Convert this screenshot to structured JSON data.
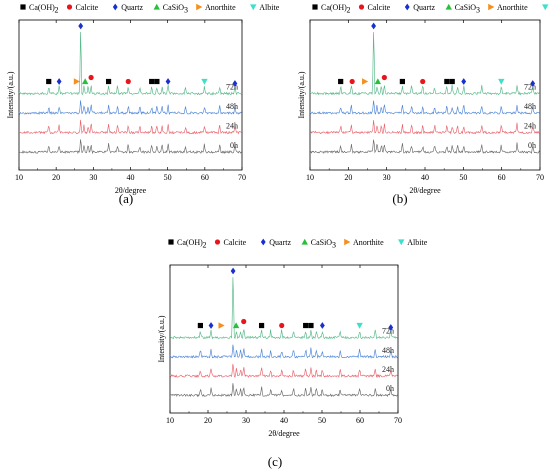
{
  "legend": {
    "caoh2": {
      "label": "Ca(OH)",
      "sub": "2"
    },
    "calcite": {
      "label": "Calcite"
    },
    "quartz": {
      "label": "Quartz"
    },
    "casio3": {
      "label": "CaSiO",
      "sub": "3"
    },
    "anorthite": {
      "label": "Anorthite"
    },
    "albite": {
      "label": "Albite"
    }
  },
  "colors": {
    "caoh2": "#000000",
    "calcite": "#e8161c",
    "quartz": "#1a2fd0",
    "casio3": "#28c03a",
    "anorthite": "#f5901e",
    "albite": "#3ee0cc",
    "series_0h": "#6b6b6b",
    "series_24h": "#e8646e",
    "series_48h": "#4f86d8",
    "series_72h": "#58b98a"
  },
  "chart_data": [
    {
      "type": "line",
      "panel": "(a)",
      "xlabel": "2θ/degree",
      "ylabel": "Intensity/(a.u.)",
      "xlim": [
        10,
        70
      ],
      "xticks": [
        10,
        20,
        30,
        40,
        50,
        60,
        70
      ],
      "series": [
        {
          "name": "0h",
          "key": "0h"
        },
        {
          "name": "24h",
          "key": "24h"
        },
        {
          "name": "48h",
          "key": "48h"
        },
        {
          "name": "72h",
          "key": "72h"
        }
      ],
      "peaks": [
        18.0,
        20.8,
        26.6,
        27.5,
        28.6,
        29.4,
        34.1,
        36.5,
        39.4,
        42.5,
        45.7,
        47.1,
        48.5,
        50.1,
        54.8,
        59.9,
        64.0,
        68.1
      ],
      "markers": [
        {
          "phase": "caoh2",
          "x": 18.0
        },
        {
          "phase": "quartz",
          "x": 20.8
        },
        {
          "phase": "anorthite",
          "x": 25.5
        },
        {
          "phase": "quartz",
          "x": 26.6
        },
        {
          "phase": "casio3",
          "x": 27.8
        },
        {
          "phase": "calcite",
          "x": 29.4
        },
        {
          "phase": "caoh2",
          "x": 34.1
        },
        {
          "phase": "calcite",
          "x": 39.4
        },
        {
          "phase": "caoh2",
          "x": 45.7
        },
        {
          "phase": "caoh2",
          "x": 47.1
        },
        {
          "phase": "quartz",
          "x": 50.1
        },
        {
          "phase": "albite",
          "x": 59.9
        },
        {
          "phase": "quartz",
          "x": 68.1
        }
      ]
    },
    {
      "type": "line",
      "panel": "(b)",
      "xlabel": "2θ/degree",
      "ylabel": "Intensity/(a.u.)",
      "xlim": [
        10,
        70
      ],
      "xticks": [
        10,
        20,
        30,
        40,
        50,
        60,
        70
      ],
      "series": [
        {
          "name": "0h",
          "key": "0h"
        },
        {
          "name": "24h",
          "key": "24h"
        },
        {
          "name": "48h",
          "key": "48h"
        },
        {
          "name": "72h",
          "key": "72h"
        }
      ],
      "peaks": [
        18.0,
        20.8,
        26.6,
        27.5,
        28.6,
        29.4,
        34.1,
        36.5,
        39.4,
        42.5,
        45.7,
        47.1,
        48.5,
        50.1,
        54.8,
        59.9,
        64.0,
        68.1
      ],
      "markers": [
        {
          "phase": "caoh2",
          "x": 18.0
        },
        {
          "phase": "calcite",
          "x": 21.0
        },
        {
          "phase": "anorthite",
          "x": 24.3
        },
        {
          "phase": "quartz",
          "x": 26.6
        },
        {
          "phase": "casio3",
          "x": 27.7
        },
        {
          "phase": "calcite",
          "x": 29.4
        },
        {
          "phase": "caoh2",
          "x": 34.1
        },
        {
          "phase": "calcite",
          "x": 39.4
        },
        {
          "phase": "caoh2",
          "x": 45.7
        },
        {
          "phase": "caoh2",
          "x": 47.1
        },
        {
          "phase": "quartz",
          "x": 50.1
        },
        {
          "phase": "albite",
          "x": 59.9
        },
        {
          "phase": "quartz",
          "x": 68.1
        }
      ]
    },
    {
      "type": "line",
      "panel": "(c)",
      "xlabel": "2θ/degree",
      "ylabel": "Intensity/(a.u.)",
      "xlim": [
        10,
        70
      ],
      "xticks": [
        10,
        20,
        30,
        40,
        50,
        60,
        70
      ],
      "series": [
        {
          "name": "0h",
          "key": "0h"
        },
        {
          "name": "24h",
          "key": "24h"
        },
        {
          "name": "48h",
          "key": "48h"
        },
        {
          "name": "72h",
          "key": "72h"
        }
      ],
      "peaks": [
        18.0,
        20.8,
        26.6,
        27.5,
        28.6,
        29.4,
        34.1,
        36.5,
        39.4,
        42.5,
        45.7,
        47.1,
        48.5,
        50.1,
        54.8,
        59.9,
        64.0,
        68.1
      ],
      "markers": [
        {
          "phase": "caoh2",
          "x": 18.0
        },
        {
          "phase": "quartz",
          "x": 20.8
        },
        {
          "phase": "anorthite",
          "x": 23.5
        },
        {
          "phase": "quartz",
          "x": 26.6
        },
        {
          "phase": "casio3",
          "x": 27.4
        },
        {
          "phase": "calcite",
          "x": 29.4
        },
        {
          "phase": "caoh2",
          "x": 34.1
        },
        {
          "phase": "calcite",
          "x": 39.4
        },
        {
          "phase": "caoh2",
          "x": 45.7
        },
        {
          "phase": "caoh2",
          "x": 47.1
        },
        {
          "phase": "quartz",
          "x": 50.1
        },
        {
          "phase": "albite",
          "x": 59.9
        },
        {
          "phase": "quartz",
          "x": 68.1
        }
      ]
    }
  ]
}
